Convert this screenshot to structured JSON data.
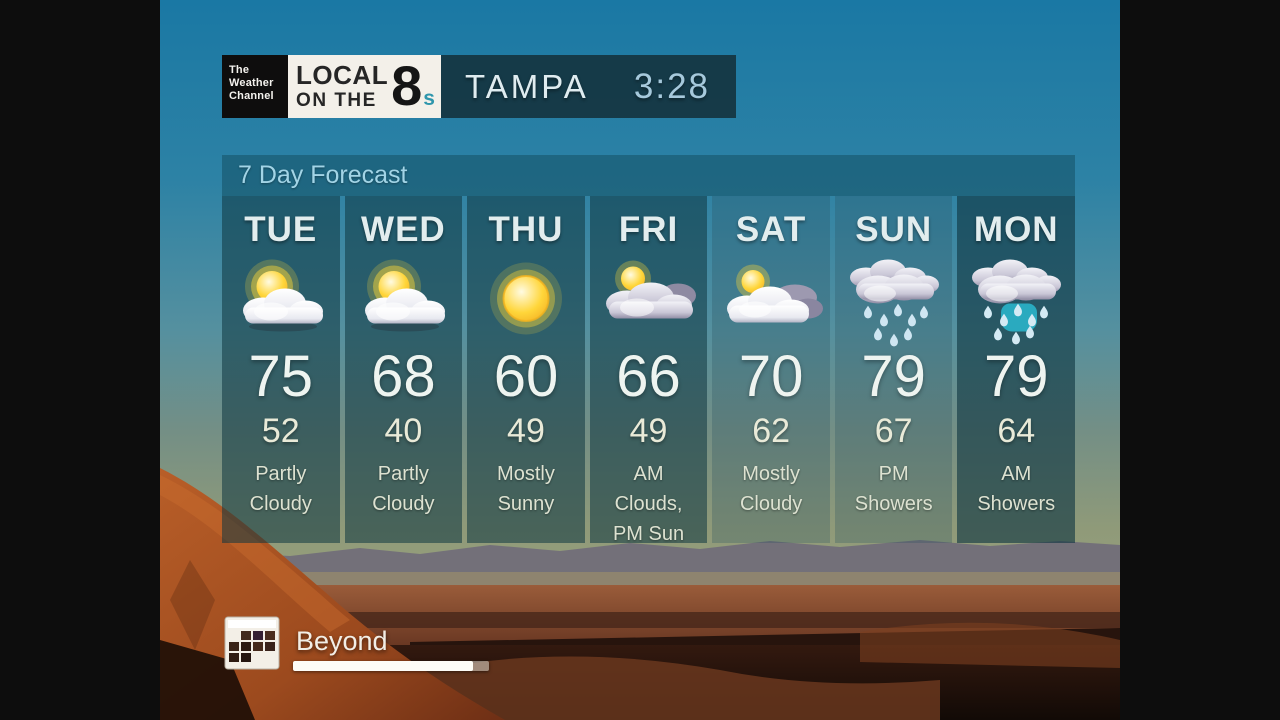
{
  "header": {
    "channel_logo": {
      "line1": "The",
      "line2": "Weather",
      "line3": "Channel"
    },
    "program_logo": {
      "local": "LOCAL",
      "on_the": "ON THE",
      "eight": "8",
      "s": "s"
    },
    "city": "TAMPA",
    "time": "3:28"
  },
  "forecast": {
    "title": "7 Day Forecast",
    "days": [
      {
        "name": "TUE",
        "icon": "partly-cloudy",
        "high": "75",
        "low": "52",
        "condition": "Partly Cloudy"
      },
      {
        "name": "WED",
        "icon": "partly-cloudy",
        "high": "68",
        "low": "40",
        "condition": "Partly Cloudy"
      },
      {
        "name": "THU",
        "icon": "sunny",
        "high": "60",
        "low": "49",
        "condition": "Mostly Sunny"
      },
      {
        "name": "FRI",
        "icon": "am-clouds-pm-sun",
        "high": "66",
        "low": "49",
        "condition": "AM Clouds, PM Sun"
      },
      {
        "name": "SAT",
        "icon": "mostly-cloudy",
        "high": "70",
        "low": "62",
        "condition": "Mostly Cloudy"
      },
      {
        "name": "SUN",
        "icon": "pm-showers",
        "high": "79",
        "low": "67",
        "condition": "PM Showers"
      },
      {
        "name": "MON",
        "icon": "am-showers",
        "high": "79",
        "low": "64",
        "condition": "AM Showers"
      }
    ]
  },
  "footer": {
    "next_label": "Beyond",
    "icon": "calendar",
    "progress_percent": 92
  },
  "colors": {
    "header_bar": "#153440",
    "time_text": "#a6c9dc",
    "panel_title_text": "#a2d4e6",
    "logo_s_teal": "#2e96ac",
    "sky_top": "#1a78a4",
    "desert_orange": "#b05a26"
  }
}
